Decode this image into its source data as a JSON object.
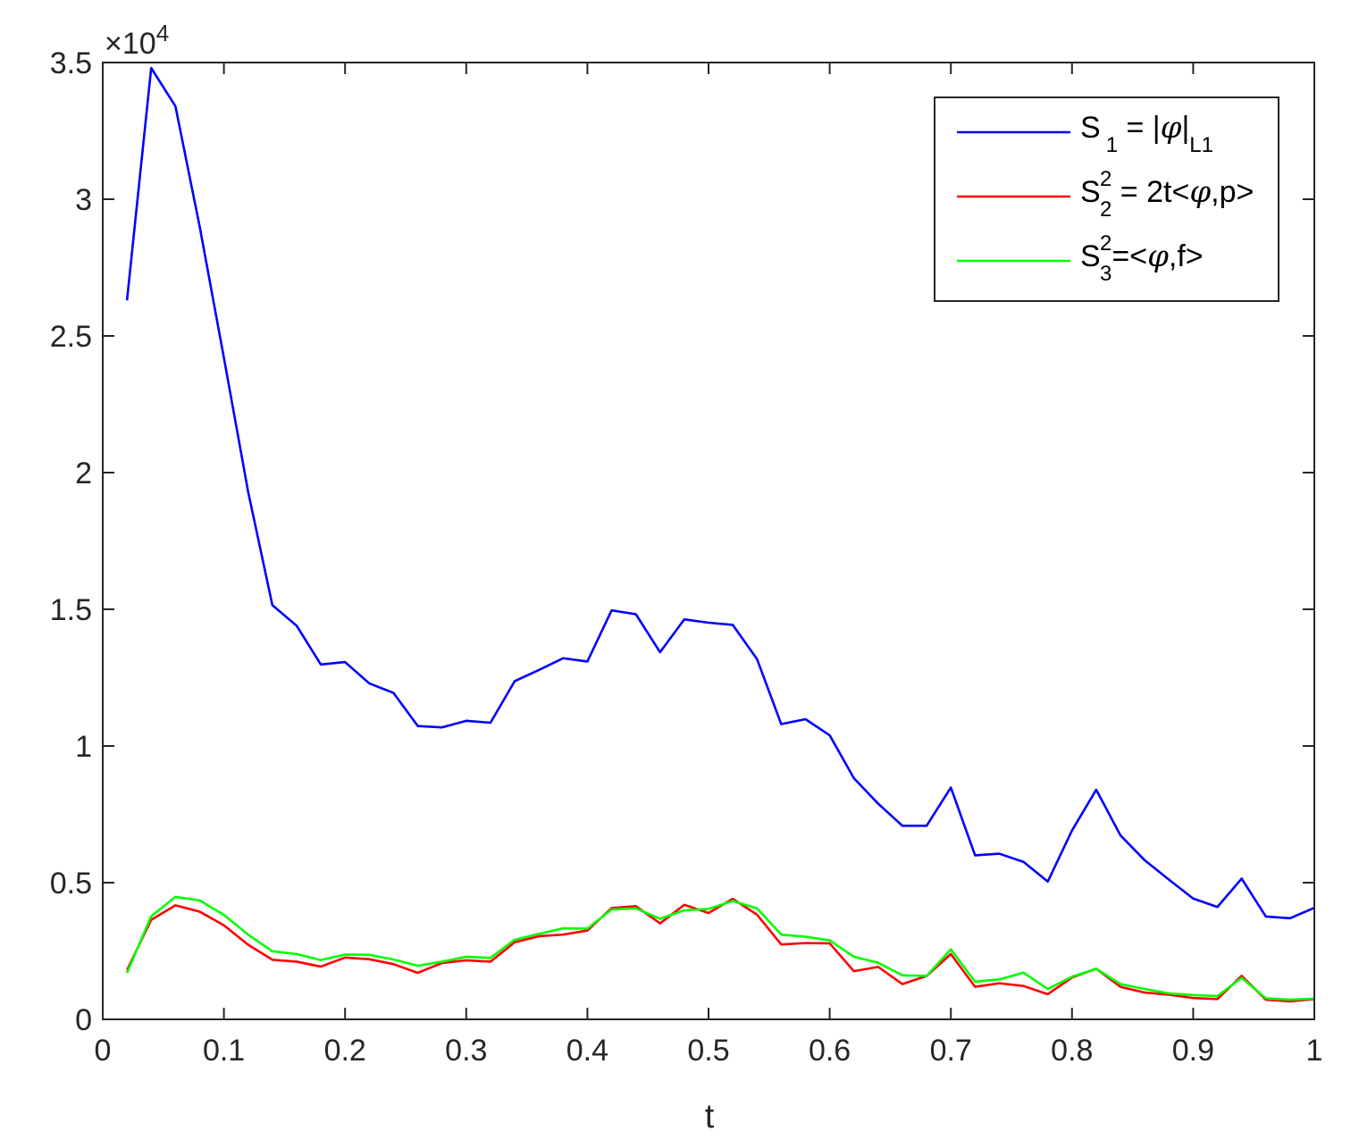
{
  "chart_data": {
    "type": "line",
    "title": "",
    "xlabel": "t",
    "ylabel": "",
    "xlim": [
      0,
      1
    ],
    "ylim": [
      0,
      35000
    ],
    "x_ticks": [
      0,
      0.1,
      0.2,
      0.3,
      0.4,
      0.5,
      0.6,
      0.7,
      0.8,
      0.9,
      1
    ],
    "x_tick_labels": [
      "0",
      "0.1",
      "0.2",
      "0.3",
      "0.4",
      "0.5",
      "0.6",
      "0.7",
      "0.8",
      "0.9",
      "1"
    ],
    "y_ticks": [
      0,
      5000,
      10000,
      15000,
      20000,
      25000,
      30000,
      35000
    ],
    "y_tick_labels": [
      "0",
      "0.5",
      "1",
      "1.5",
      "2",
      "2.5",
      "3",
      "3.5"
    ],
    "y_exponent_label": {
      "base": "×10",
      "exp": "4"
    },
    "grid": false,
    "legend_position": "top-right",
    "x": [
      0.02,
      0.04,
      0.06,
      0.08,
      0.1,
      0.12,
      0.14,
      0.16,
      0.18,
      0.2,
      0.22,
      0.24,
      0.26,
      0.28,
      0.3,
      0.32,
      0.34,
      0.36,
      0.38,
      0.4,
      0.42,
      0.44,
      0.46,
      0.48,
      0.5,
      0.52,
      0.54,
      0.56,
      0.58,
      0.6,
      0.62,
      0.64,
      0.66,
      0.68,
      0.7,
      0.72,
      0.74,
      0.76,
      0.78,
      0.8,
      0.82,
      0.84,
      0.86,
      0.88,
      0.9,
      0.92,
      0.94,
      0.96,
      0.98,
      1.0
    ],
    "series": [
      {
        "name": "S1 = |φ|L1",
        "legend_parts": {
          "main": "S",
          "sup": "",
          "sub": "1",
          "rest": " = |",
          "phi": "φ",
          "rest2": "|",
          "sub2": "L1",
          "tail": ""
        },
        "color": "#0000ff",
        "values": [
          26300,
          34800,
          33400,
          29000,
          24200,
          19300,
          15150,
          14400,
          12980,
          13070,
          12290,
          11940,
          10730,
          10680,
          10920,
          10850,
          12370,
          12780,
          13210,
          13090,
          14960,
          14820,
          13430,
          14630,
          14510,
          14430,
          13180,
          10800,
          10980,
          10390,
          8820,
          7890,
          7080,
          7080,
          8480,
          6000,
          6060,
          5760,
          5040,
          6910,
          8400,
          6730,
          5820,
          5110,
          4420,
          4110,
          5150,
          3760,
          3700,
          4080
        ]
      },
      {
        "name": "S2² = 2t<φ,p>",
        "legend_parts": {
          "main": "S",
          "sup": "2",
          "sub": "2",
          "rest": " = 2t<",
          "phi": "φ",
          "rest2": ",p>",
          "sub2": "",
          "tail": ""
        },
        "color": "#ff0000",
        "values": [
          1800,
          3640,
          4170,
          3940,
          3440,
          2730,
          2180,
          2110,
          1930,
          2260,
          2200,
          2020,
          1700,
          2060,
          2160,
          2110,
          2820,
          3040,
          3100,
          3250,
          4070,
          4140,
          3510,
          4190,
          3890,
          4410,
          3830,
          2740,
          2790,
          2780,
          1760,
          1920,
          1290,
          1590,
          2390,
          1190,
          1320,
          1220,
          920,
          1530,
          1850,
          1190,
          980,
          900,
          780,
          740,
          1590,
          720,
          660,
          740
        ]
      },
      {
        "name": "S3²=<φ,f>",
        "legend_parts": {
          "main": "S",
          "sup": "2",
          "sub": "3",
          "rest": "=<",
          "phi": "φ",
          "rest2": ",f>",
          "sub2": "",
          "tail": ""
        },
        "color": "#00ff00",
        "values": [
          1700,
          3770,
          4480,
          4350,
          3820,
          3100,
          2490,
          2390,
          2170,
          2370,
          2360,
          2190,
          1960,
          2110,
          2290,
          2250,
          2910,
          3130,
          3330,
          3320,
          4020,
          4060,
          3680,
          3990,
          4040,
          4330,
          4060,
          3100,
          3020,
          2890,
          2290,
          2070,
          1610,
          1590,
          2560,
          1380,
          1460,
          1710,
          1110,
          1560,
          1850,
          1290,
          1110,
          950,
          890,
          850,
          1520,
          770,
          720,
          760
        ]
      }
    ]
  }
}
